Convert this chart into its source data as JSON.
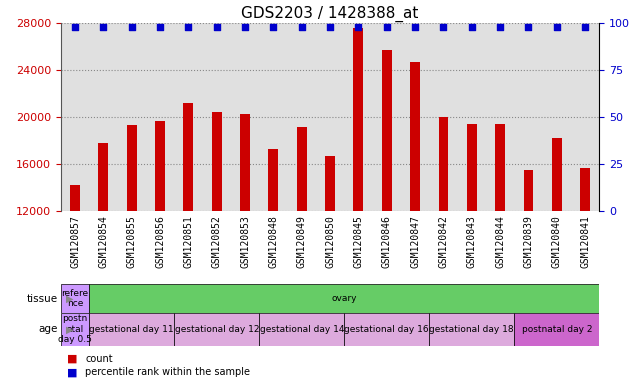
{
  "title": "GDS2203 / 1428388_at",
  "samples": [
    "GSM120857",
    "GSM120854",
    "GSM120855",
    "GSM120856",
    "GSM120851",
    "GSM120852",
    "GSM120853",
    "GSM120848",
    "GSM120849",
    "GSM120850",
    "GSM120845",
    "GSM120846",
    "GSM120847",
    "GSM120842",
    "GSM120843",
    "GSM120844",
    "GSM120839",
    "GSM120840",
    "GSM120841"
  ],
  "counts": [
    14200,
    17800,
    19300,
    19700,
    21200,
    20400,
    20300,
    17300,
    19200,
    16700,
    27600,
    25700,
    24700,
    20000,
    19400,
    19400,
    15500,
    18200,
    15700
  ],
  "bar_color": "#cc0000",
  "dot_color": "#0000cc",
  "ylim_left": [
    12000,
    28000
  ],
  "ylim_right": [
    0,
    100
  ],
  "yticks_left": [
    12000,
    16000,
    20000,
    24000,
    28000
  ],
  "yticks_right": [
    0,
    25,
    50,
    75,
    100
  ],
  "tissue_row": {
    "label": "tissue",
    "cells": [
      {
        "text": "refere\nnce",
        "color": "#cc99ff",
        "span": 1
      },
      {
        "text": "ovary",
        "color": "#66cc66",
        "span": 18
      }
    ]
  },
  "age_row": {
    "label": "age",
    "cells": [
      {
        "text": "postn\natal\nday 0.5",
        "color": "#cc99ff",
        "span": 1
      },
      {
        "text": "gestational day 11",
        "color": "#ddaadd",
        "span": 3
      },
      {
        "text": "gestational day 12",
        "color": "#ddaadd",
        "span": 3
      },
      {
        "text": "gestational day 14",
        "color": "#ddaadd",
        "span": 3
      },
      {
        "text": "gestational day 16",
        "color": "#ddaadd",
        "span": 3
      },
      {
        "text": "gestational day 18",
        "color": "#ddaadd",
        "span": 3
      },
      {
        "text": "postnatal day 2",
        "color": "#cc66cc",
        "span": 3
      }
    ]
  },
  "legend_items": [
    {
      "color": "#cc0000",
      "label": "count"
    },
    {
      "color": "#0000cc",
      "label": "percentile rank within the sample"
    }
  ],
  "bg_color": "#e0e0e0",
  "grid_color": "#888888",
  "title_fontsize": 11,
  "tick_fontsize": 7,
  "bar_width": 0.35
}
